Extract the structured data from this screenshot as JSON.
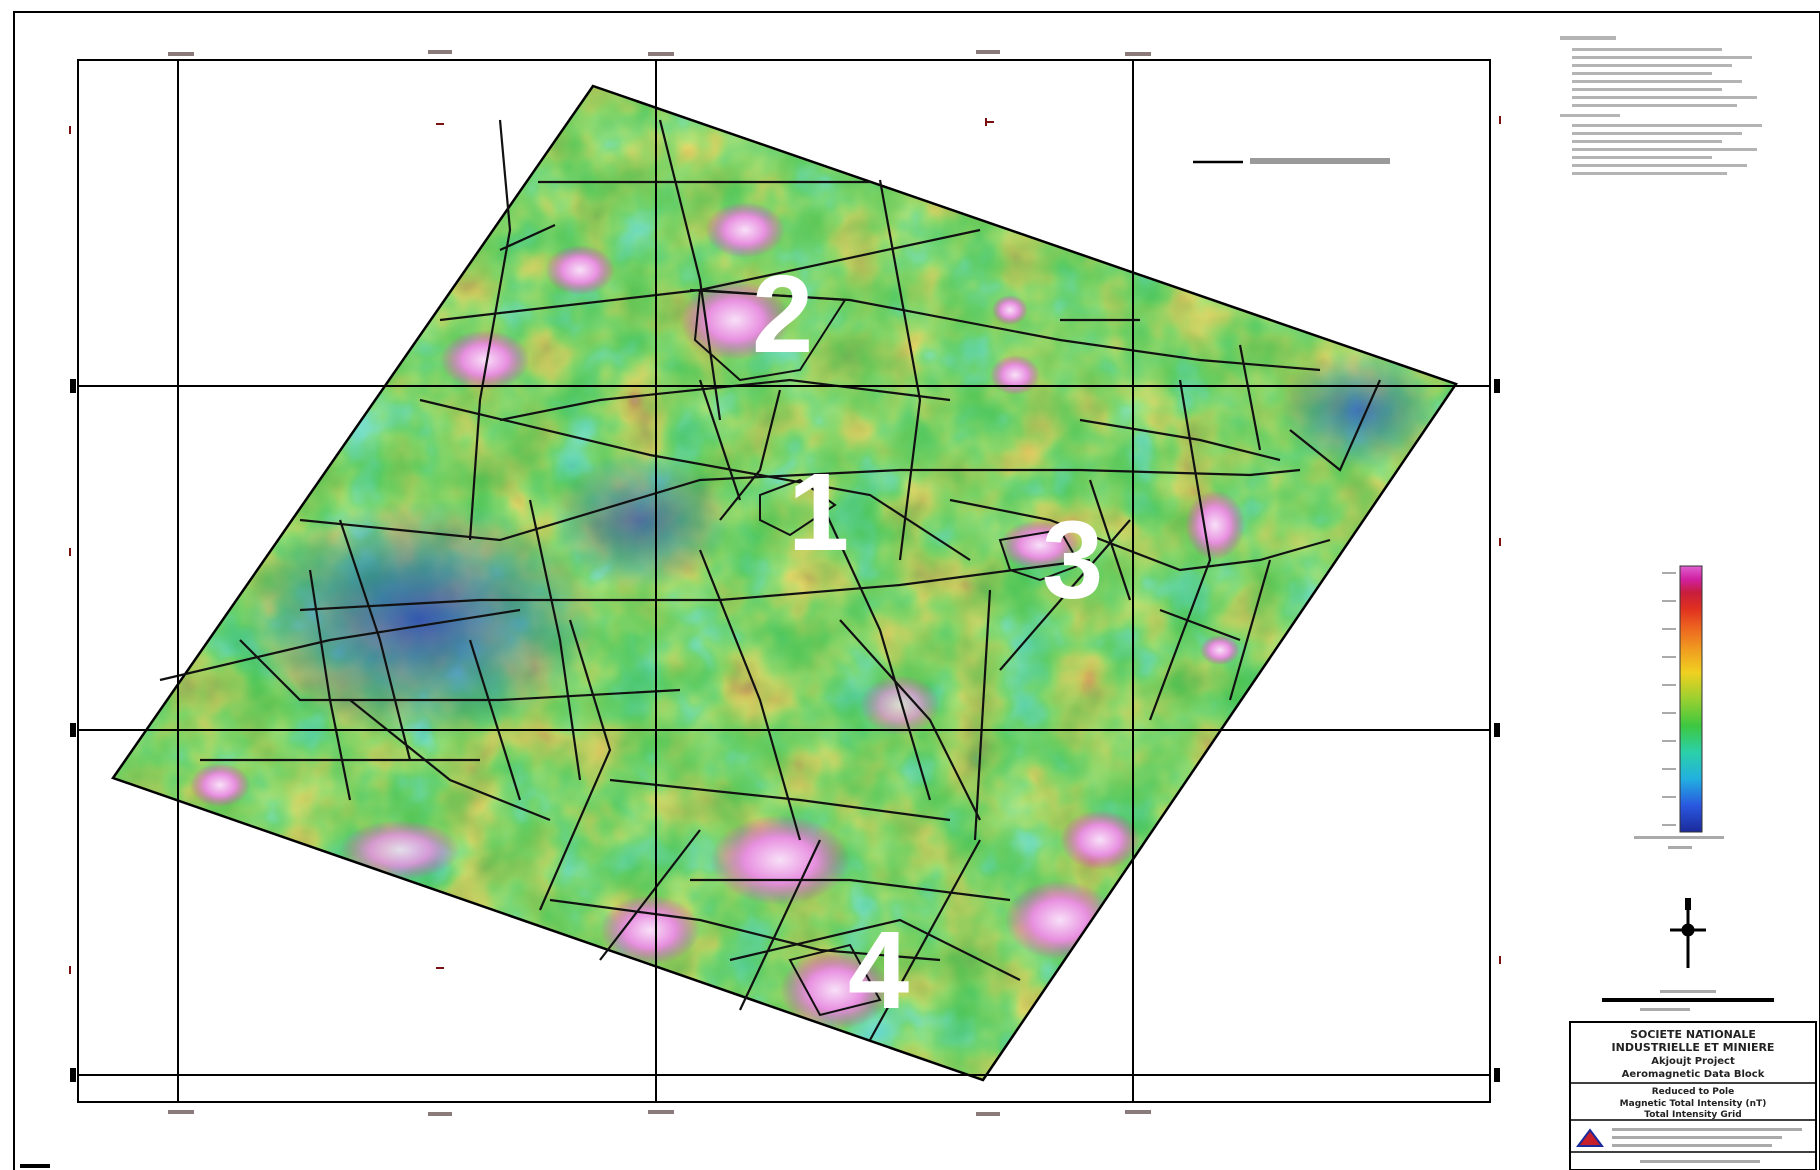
{
  "map": {
    "zones": [
      {
        "id": "1",
        "label": "1"
      },
      {
        "id": "2",
        "label": "2"
      },
      {
        "id": "3",
        "label": "3"
      },
      {
        "id": "4",
        "label": "4"
      }
    ],
    "colors": {
      "low": "#2b3fd8",
      "mid_low": "#2fd0c0",
      "mid": "#4cc84a",
      "mid_high": "#f0a020",
      "high": "#e03020",
      "very_high": "#e040c0",
      "peak": "#f4d0f4",
      "fault_lines": "#111111",
      "grid_lines": "#000000"
    },
    "legend_key": "fault interpretation",
    "colorbar": {
      "name": "color-scale",
      "stops": [
        "#1b2a9a",
        "#2a58e0",
        "#22b0e0",
        "#2bd0a8",
        "#3ec840",
        "#9ad030",
        "#f0d020",
        "#f0a020",
        "#ee6a20",
        "#e03020",
        "#c81e3c",
        "#d020a0",
        "#e060d0"
      ]
    },
    "title_block": {
      "line1": "SOCIETE NATIONALE",
      "line2": "INDUSTRIELLE ET MINIERE",
      "line3": "Akjoujt Project",
      "line4": "Aeromagnetic Data Block",
      "line5": "Reduced to Pole",
      "line6": "Magnetic Total Intensity (nT)",
      "line7": "Total Intensity Grid"
    },
    "north_arrow": "north-arrow",
    "scale_bar": "scale-bar"
  }
}
